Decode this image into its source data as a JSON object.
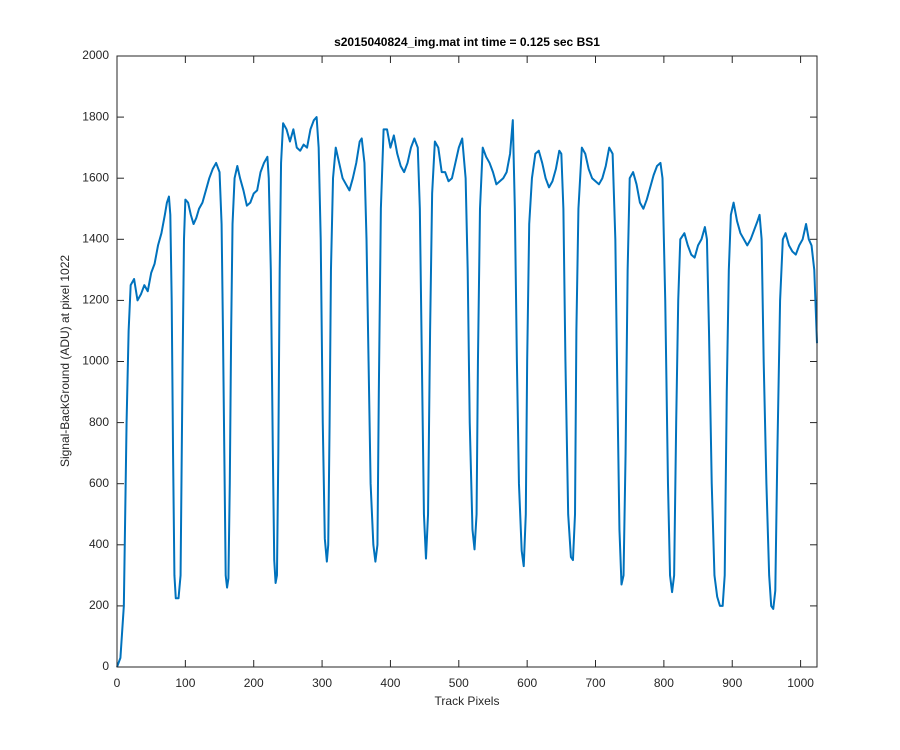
{
  "chart_data": {
    "type": "line",
    "title": "s2015040824_img.mat int time = 0.125 sec   BS1",
    "xlabel": "Track Pixels",
    "ylabel": "Signal-BackGround (ADU) at pixel 1022",
    "xlim": [
      0,
      1024
    ],
    "ylim": [
      0,
      2000
    ],
    "xticks": [
      0,
      100,
      200,
      300,
      400,
      500,
      600,
      700,
      800,
      900,
      1000
    ],
    "yticks": [
      0,
      200,
      400,
      600,
      800,
      1000,
      1200,
      1400,
      1600,
      1800,
      2000
    ],
    "grid": false,
    "color": "#0072bd",
    "x": [
      0,
      5,
      10,
      14,
      17,
      20,
      25,
      30,
      35,
      40,
      45,
      50,
      55,
      60,
      65,
      70,
      73,
      76,
      78,
      80,
      82,
      84,
      86,
      90,
      93,
      96,
      98,
      100,
      104,
      108,
      112,
      116,
      120,
      125,
      130,
      135,
      140,
      145,
      150,
      153,
      155,
      157,
      159,
      161,
      163,
      165,
      167,
      169,
      172,
      176,
      180,
      185,
      190,
      195,
      200,
      205,
      210,
      215,
      220,
      222,
      225,
      228,
      230,
      232,
      234,
      236,
      238,
      240,
      243,
      248,
      253,
      258,
      263,
      268,
      273,
      278,
      283,
      288,
      292,
      295,
      298,
      301,
      304,
      307,
      309,
      311,
      313,
      316,
      320,
      325,
      330,
      335,
      340,
      345,
      350,
      355,
      358,
      362,
      365,
      368,
      371,
      375,
      378,
      381,
      383,
      386,
      390,
      395,
      400,
      405,
      410,
      415,
      420,
      425,
      430,
      435,
      440,
      443,
      446,
      449,
      452,
      455,
      458,
      461,
      465,
      470,
      475,
      480,
      485,
      490,
      495,
      500,
      505,
      510,
      513,
      516,
      520,
      523,
      526,
      528,
      531,
      535,
      540,
      545,
      550,
      555,
      560,
      565,
      570,
      575,
      579,
      582,
      585,
      588,
      592,
      595,
      598,
      600,
      603,
      607,
      612,
      617,
      622,
      627,
      632,
      637,
      642,
      647,
      650,
      653,
      656,
      660,
      664,
      667,
      670,
      672,
      675,
      680,
      685,
      690,
      695,
      700,
      705,
      710,
      715,
      720,
      725,
      729,
      732,
      735,
      738,
      741,
      744,
      747,
      750,
      755,
      760,
      765,
      770,
      775,
      780,
      785,
      790,
      795,
      798,
      802,
      806,
      809,
      812,
      815,
      818,
      821,
      824,
      830,
      835,
      840,
      845,
      850,
      855,
      860,
      863,
      866,
      870,
      874,
      878,
      882,
      886,
      889,
      892,
      895,
      898,
      902,
      907,
      912,
      917,
      922,
      927,
      932,
      937,
      940,
      943,
      946,
      950,
      954,
      957,
      960,
      963,
      966,
      970,
      974,
      978,
      983,
      988,
      993,
      998,
      1003,
      1008,
      1012,
      1016,
      1020,
      1024
    ],
    "values": [
      0,
      30,
      200,
      800,
      1100,
      1250,
      1270,
      1200,
      1220,
      1250,
      1230,
      1290,
      1320,
      1380,
      1420,
      1480,
      1520,
      1540,
      1480,
      1200,
      700,
      300,
      225,
      225,
      300,
      1000,
      1400,
      1530,
      1520,
      1480,
      1450,
      1470,
      1500,
      1520,
      1560,
      1600,
      1630,
      1650,
      1620,
      1450,
      1100,
      700,
      300,
      260,
      290,
      600,
      1100,
      1450,
      1600,
      1640,
      1600,
      1560,
      1510,
      1520,
      1550,
      1560,
      1620,
      1650,
      1670,
      1600,
      1300,
      700,
      350,
      275,
      300,
      700,
      1300,
      1650,
      1780,
      1760,
      1720,
      1760,
      1700,
      1690,
      1710,
      1700,
      1760,
      1790,
      1800,
      1700,
      1400,
      800,
      420,
      345,
      400,
      800,
      1300,
      1600,
      1700,
      1650,
      1600,
      1580,
      1560,
      1600,
      1650,
      1720,
      1730,
      1650,
      1400,
      1000,
      600,
      400,
      345,
      400,
      900,
      1500,
      1760,
      1760,
      1700,
      1740,
      1680,
      1640,
      1620,
      1650,
      1700,
      1730,
      1700,
      1500,
      1000,
      500,
      355,
      500,
      1100,
      1550,
      1720,
      1700,
      1620,
      1620,
      1590,
      1600,
      1650,
      1700,
      1730,
      1600,
      1300,
      800,
      450,
      385,
      500,
      1000,
      1500,
      1700,
      1670,
      1650,
      1620,
      1580,
      1590,
      1600,
      1620,
      1680,
      1790,
      1500,
      1000,
      600,
      380,
      330,
      500,
      1000,
      1450,
      1600,
      1680,
      1690,
      1650,
      1600,
      1570,
      1590,
      1630,
      1690,
      1680,
      1500,
      1000,
      500,
      360,
      350,
      500,
      1100,
      1500,
      1700,
      1680,
      1630,
      1600,
      1590,
      1580,
      1600,
      1640,
      1700,
      1680,
      1400,
      900,
      450,
      270,
      300,
      700,
      1300,
      1600,
      1620,
      1580,
      1520,
      1500,
      1530,
      1570,
      1610,
      1640,
      1650,
      1600,
      1200,
      600,
      300,
      245,
      300,
      800,
      1200,
      1400,
      1420,
      1380,
      1350,
      1340,
      1380,
      1400,
      1440,
      1400,
      1100,
      600,
      300,
      230,
      200,
      200,
      300,
      900,
      1300,
      1480,
      1520,
      1460,
      1420,
      1400,
      1380,
      1400,
      1430,
      1460,
      1480,
      1400,
      1000,
      600,
      300,
      200,
      190,
      250,
      700,
      1200,
      1400,
      1420,
      1380,
      1360,
      1350,
      1380,
      1400,
      1450,
      1400,
      1380,
      1300,
      1060
    ]
  }
}
